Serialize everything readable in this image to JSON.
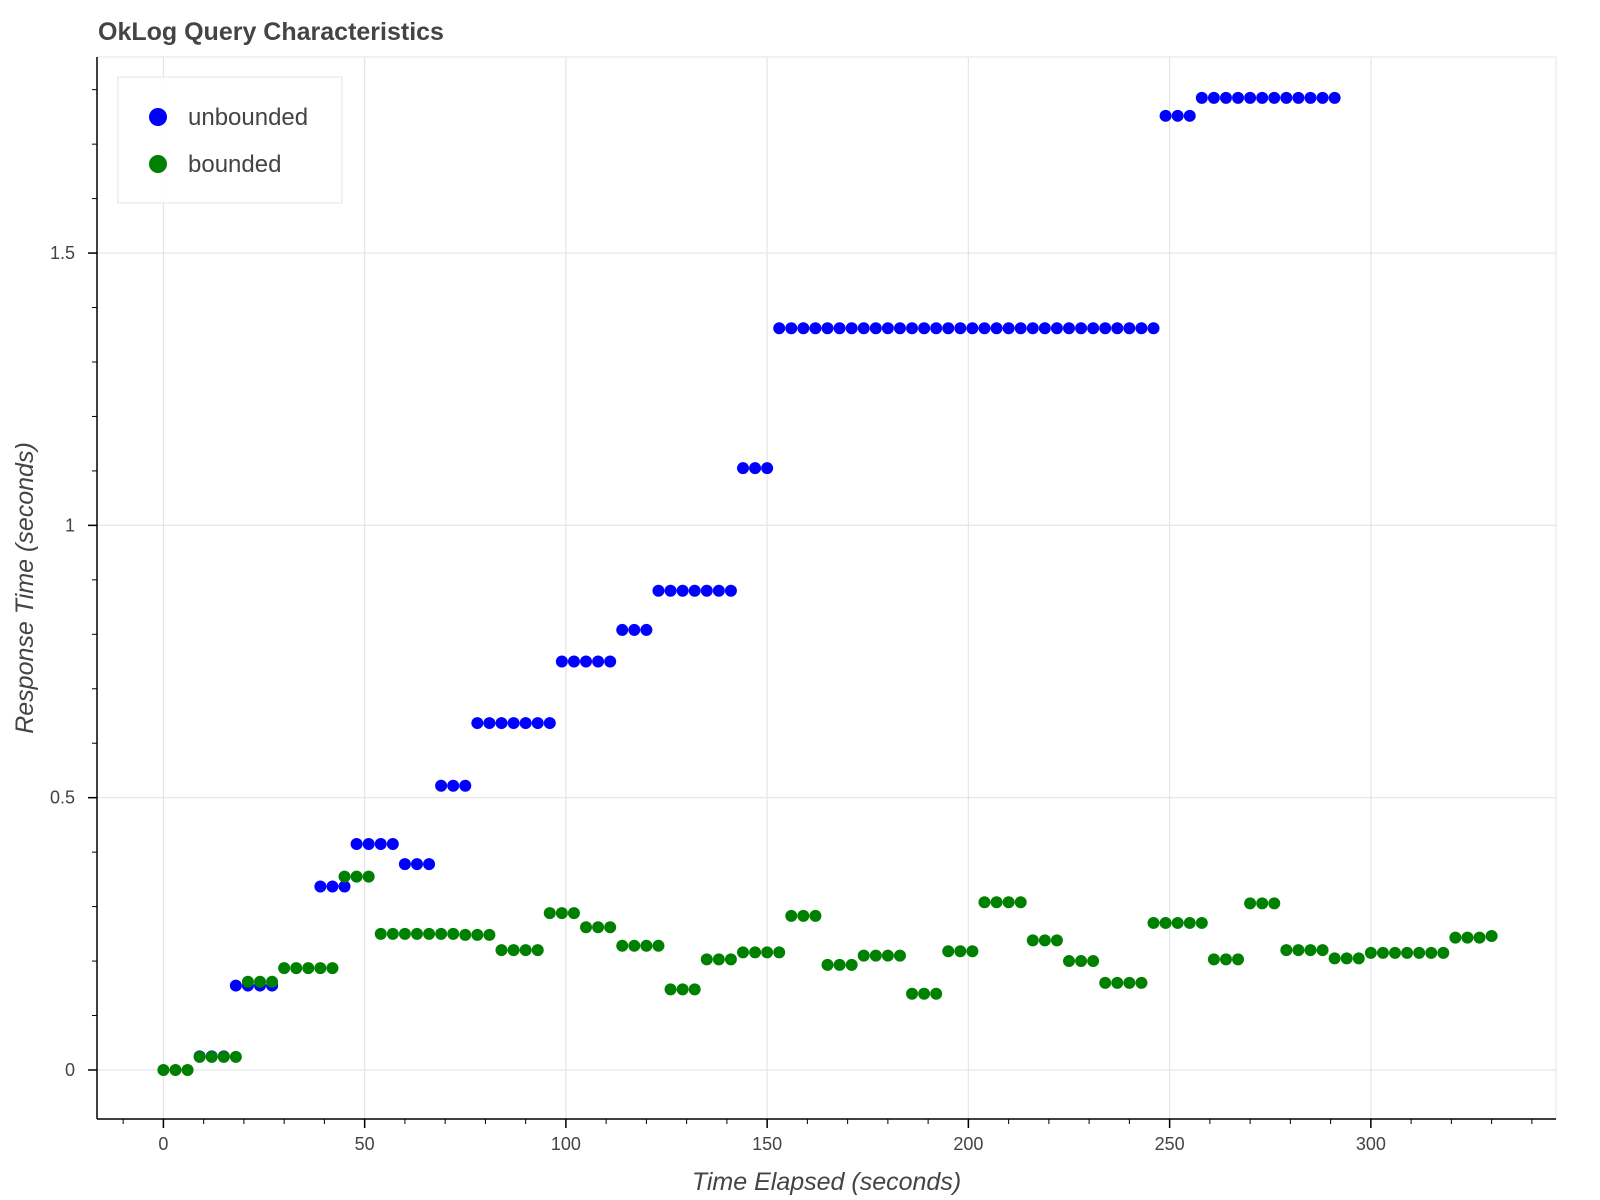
{
  "chart_data": {
    "type": "scatter",
    "title": "OkLog Query Characteristics",
    "xlabel": "Time Elapsed (seconds)",
    "ylabel": "Response Time (seconds)",
    "xlim": [
      -16.5,
      346
    ],
    "ylim": [
      -0.09,
      1.86
    ],
    "x_ticks": [
      0,
      50,
      100,
      150,
      200,
      250,
      300
    ],
    "x_tick_labels": [
      "0",
      "50",
      "100",
      "150",
      "200",
      "250",
      "300"
    ],
    "y_ticks": [
      0,
      0.5,
      1,
      1.5
    ],
    "y_tick_labels": [
      "0",
      "0.5",
      "1",
      "1.5"
    ],
    "grid": true,
    "legend_position": "top-left",
    "series": [
      {
        "name": "unbounded",
        "color": "#0000ff",
        "points": [
          [
            9,
            0.025
          ],
          [
            12,
            0.025
          ],
          [
            15,
            0.025
          ],
          [
            18,
            0.155
          ],
          [
            21,
            0.155
          ],
          [
            24,
            0.155
          ],
          [
            27,
            0.155
          ],
          [
            39,
            0.337
          ],
          [
            42,
            0.337
          ],
          [
            45,
            0.337
          ],
          [
            48,
            0.415
          ],
          [
            51,
            0.415
          ],
          [
            54,
            0.415
          ],
          [
            57,
            0.415
          ],
          [
            60,
            0.378
          ],
          [
            63,
            0.378
          ],
          [
            66,
            0.378
          ],
          [
            69,
            0.522
          ],
          [
            72,
            0.522
          ],
          [
            75,
            0.522
          ],
          [
            78,
            0.637
          ],
          [
            81,
            0.637
          ],
          [
            84,
            0.637
          ],
          [
            87,
            0.637
          ],
          [
            90,
            0.637
          ],
          [
            93,
            0.637
          ],
          [
            96,
            0.637
          ],
          [
            99,
            0.75
          ],
          [
            102,
            0.75
          ],
          [
            105,
            0.75
          ],
          [
            108,
            0.75
          ],
          [
            111,
            0.75
          ],
          [
            114,
            0.808
          ],
          [
            117,
            0.808
          ],
          [
            120,
            0.808
          ],
          [
            123,
            0.88
          ],
          [
            126,
            0.88
          ],
          [
            129,
            0.88
          ],
          [
            132,
            0.88
          ],
          [
            135,
            0.88
          ],
          [
            138,
            0.88
          ],
          [
            141,
            0.88
          ],
          [
            144,
            1.105
          ],
          [
            147,
            1.105
          ],
          [
            150,
            1.105
          ],
          [
            153,
            1.362
          ],
          [
            156,
            1.362
          ],
          [
            159,
            1.362
          ],
          [
            162,
            1.362
          ],
          [
            165,
            1.362
          ],
          [
            168,
            1.362
          ],
          [
            171,
            1.362
          ],
          [
            174,
            1.362
          ],
          [
            177,
            1.362
          ],
          [
            180,
            1.362
          ],
          [
            183,
            1.362
          ],
          [
            186,
            1.362
          ],
          [
            189,
            1.362
          ],
          [
            192,
            1.362
          ],
          [
            195,
            1.362
          ],
          [
            198,
            1.362
          ],
          [
            201,
            1.362
          ],
          [
            204,
            1.362
          ],
          [
            207,
            1.362
          ],
          [
            210,
            1.362
          ],
          [
            213,
            1.362
          ],
          [
            216,
            1.362
          ],
          [
            219,
            1.362
          ],
          [
            222,
            1.362
          ],
          [
            225,
            1.362
          ],
          [
            228,
            1.362
          ],
          [
            231,
            1.362
          ],
          [
            234,
            1.362
          ],
          [
            237,
            1.362
          ],
          [
            240,
            1.362
          ],
          [
            243,
            1.362
          ],
          [
            246,
            1.362
          ],
          [
            249,
            1.752
          ],
          [
            252,
            1.752
          ],
          [
            255,
            1.752
          ],
          [
            258,
            1.785
          ],
          [
            261,
            1.785
          ],
          [
            264,
            1.785
          ],
          [
            267,
            1.785
          ],
          [
            270,
            1.785
          ],
          [
            273,
            1.785
          ],
          [
            276,
            1.785
          ],
          [
            279,
            1.785
          ],
          [
            282,
            1.785
          ],
          [
            285,
            1.785
          ],
          [
            288,
            1.785
          ],
          [
            291,
            1.785
          ]
        ]
      },
      {
        "name": "bounded",
        "color": "#008000",
        "points": [
          [
            0,
            0.0
          ],
          [
            3,
            0.0
          ],
          [
            6,
            0.0
          ],
          [
            9,
            0.024
          ],
          [
            12,
            0.024
          ],
          [
            15,
            0.024
          ],
          [
            18,
            0.024
          ],
          [
            21,
            0.162
          ],
          [
            24,
            0.162
          ],
          [
            27,
            0.162
          ],
          [
            30,
            0.187
          ],
          [
            33,
            0.187
          ],
          [
            36,
            0.187
          ],
          [
            39,
            0.187
          ],
          [
            42,
            0.187
          ],
          [
            45,
            0.355
          ],
          [
            48,
            0.355
          ],
          [
            51,
            0.355
          ],
          [
            54,
            0.25
          ],
          [
            57,
            0.25
          ],
          [
            60,
            0.25
          ],
          [
            63,
            0.25
          ],
          [
            66,
            0.25
          ],
          [
            69,
            0.25
          ],
          [
            72,
            0.25
          ],
          [
            75,
            0.248
          ],
          [
            78,
            0.248
          ],
          [
            81,
            0.248
          ],
          [
            84,
            0.22
          ],
          [
            87,
            0.22
          ],
          [
            90,
            0.22
          ],
          [
            93,
            0.22
          ],
          [
            96,
            0.288
          ],
          [
            99,
            0.288
          ],
          [
            102,
            0.288
          ],
          [
            105,
            0.262
          ],
          [
            108,
            0.262
          ],
          [
            111,
            0.262
          ],
          [
            114,
            0.228
          ],
          [
            117,
            0.228
          ],
          [
            120,
            0.228
          ],
          [
            123,
            0.228
          ],
          [
            126,
            0.148
          ],
          [
            129,
            0.148
          ],
          [
            132,
            0.148
          ],
          [
            135,
            0.203
          ],
          [
            138,
            0.203
          ],
          [
            141,
            0.203
          ],
          [
            144,
            0.216
          ],
          [
            147,
            0.216
          ],
          [
            150,
            0.216
          ],
          [
            153,
            0.216
          ],
          [
            156,
            0.283
          ],
          [
            159,
            0.283
          ],
          [
            162,
            0.283
          ],
          [
            165,
            0.193
          ],
          [
            168,
            0.193
          ],
          [
            171,
            0.193
          ],
          [
            174,
            0.21
          ],
          [
            177,
            0.21
          ],
          [
            180,
            0.21
          ],
          [
            183,
            0.21
          ],
          [
            186,
            0.14
          ],
          [
            189,
            0.14
          ],
          [
            192,
            0.14
          ],
          [
            195,
            0.218
          ],
          [
            198,
            0.218
          ],
          [
            201,
            0.218
          ],
          [
            204,
            0.308
          ],
          [
            207,
            0.308
          ],
          [
            210,
            0.308
          ],
          [
            213,
            0.308
          ],
          [
            216,
            0.238
          ],
          [
            219,
            0.238
          ],
          [
            222,
            0.238
          ],
          [
            225,
            0.2
          ],
          [
            228,
            0.2
          ],
          [
            231,
            0.2
          ],
          [
            234,
            0.16
          ],
          [
            237,
            0.16
          ],
          [
            240,
            0.16
          ],
          [
            243,
            0.16
          ],
          [
            246,
            0.27
          ],
          [
            249,
            0.27
          ],
          [
            252,
            0.27
          ],
          [
            255,
            0.27
          ],
          [
            258,
            0.27
          ],
          [
            261,
            0.203
          ],
          [
            264,
            0.203
          ],
          [
            267,
            0.203
          ],
          [
            270,
            0.306
          ],
          [
            273,
            0.306
          ],
          [
            276,
            0.306
          ],
          [
            279,
            0.22
          ],
          [
            282,
            0.22
          ],
          [
            285,
            0.22
          ],
          [
            288,
            0.22
          ],
          [
            291,
            0.205
          ],
          [
            294,
            0.205
          ],
          [
            297,
            0.205
          ],
          [
            300,
            0.215
          ],
          [
            303,
            0.215
          ],
          [
            306,
            0.215
          ],
          [
            309,
            0.215
          ],
          [
            312,
            0.215
          ],
          [
            315,
            0.215
          ],
          [
            318,
            0.215
          ],
          [
            321,
            0.243
          ],
          [
            324,
            0.243
          ],
          [
            327,
            0.243
          ],
          [
            330,
            0.246
          ]
        ]
      }
    ]
  }
}
